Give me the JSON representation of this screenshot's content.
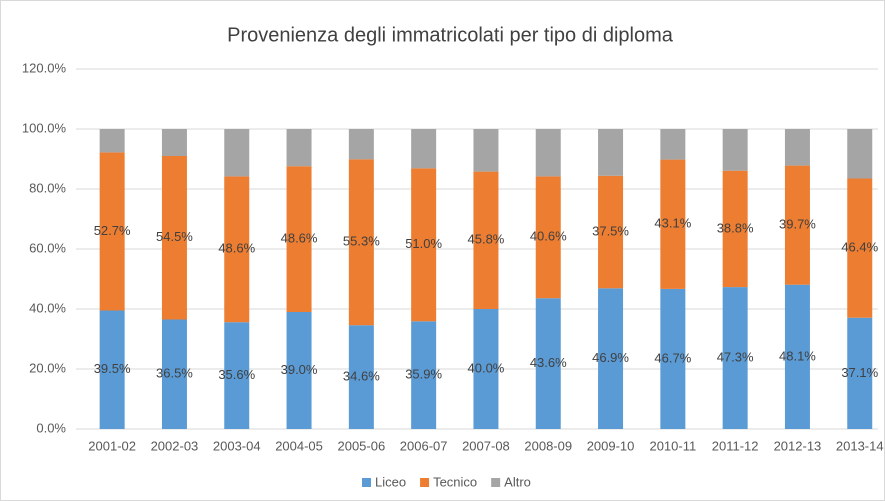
{
  "chart_data": {
    "type": "stacked_bar",
    "title": "Provenienza degli immatricolati per tipo di diploma",
    "categories": [
      "2001-02",
      "2002-03",
      "2003-04",
      "2004-05",
      "2005-06",
      "2006-07",
      "2007-08",
      "2008-09",
      "2009-10",
      "2010-11",
      "2011-12",
      "2012-13",
      "2013-14"
    ],
    "series": [
      {
        "name": "Liceo",
        "color": "#5b9bd5",
        "values": [
          39.5,
          36.5,
          35.6,
          39.0,
          34.6,
          35.9,
          40.0,
          43.6,
          46.9,
          46.7,
          47.3,
          48.1,
          37.1
        ],
        "value_labels": [
          "39.5%",
          "36.5%",
          "35.6%",
          "39.0%",
          "34.6%",
          "35.9%",
          "40.0%",
          "43.6%",
          "46.9%",
          "46.7%",
          "47.3%",
          "48.1%",
          "37.1%"
        ]
      },
      {
        "name": "Tecnico",
        "color": "#ed7d31",
        "values": [
          52.7,
          54.5,
          48.6,
          48.6,
          55.3,
          51.0,
          45.8,
          40.6,
          37.5,
          43.1,
          38.8,
          39.7,
          46.4
        ],
        "value_labels": [
          "52.7%",
          "54.5%",
          "48.6%",
          "48.6%",
          "55.3%",
          "51.0%",
          "45.8%",
          "40.6%",
          "37.5%",
          "43.1%",
          "38.8%",
          "39.7%",
          "46.4%"
        ]
      },
      {
        "name": "Altro",
        "color": "#a5a5a5",
        "values": [
          7.8,
          9.0,
          15.8,
          12.4,
          10.1,
          13.1,
          14.2,
          15.8,
          15.6,
          10.2,
          13.9,
          12.2,
          16.5
        ]
      }
    ],
    "ylim": [
      0,
      120
    ],
    "yticks": [
      {
        "value": 0,
        "label": "0.0%"
      },
      {
        "value": 20,
        "label": "20.0%"
      },
      {
        "value": 40,
        "label": "40.0%"
      },
      {
        "value": 60,
        "label": "60.0%"
      },
      {
        "value": 80,
        "label": "80.0%"
      },
      {
        "value": 100,
        "label": "100.0%"
      },
      {
        "value": 120,
        "label": "120.0%"
      }
    ],
    "grid": true,
    "legend": "bottom"
  }
}
